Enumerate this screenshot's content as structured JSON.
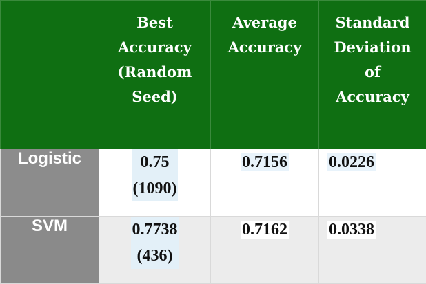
{
  "header": {
    "col0": "",
    "col1": [
      "Best",
      "Accuracy",
      "(Random",
      "Seed)"
    ],
    "col2": [
      "Average",
      "Accuracy"
    ],
    "col3": [
      "Standard",
      "Deviation",
      "of",
      "Accuracy"
    ]
  },
  "rows": [
    {
      "label": "Logistic",
      "best": [
        "0.75",
        "(1090)"
      ],
      "average": "0.7156",
      "std": "0.0226"
    },
    {
      "label": "SVM",
      "best": [
        "0.7738",
        "(436)"
      ],
      "average": "0.7162",
      "std": "0.0338"
    }
  ],
  "colors": {
    "header_bg": "#0f6f12",
    "label_bg": "#8c8c8c",
    "row2_bg": "#ececec"
  }
}
